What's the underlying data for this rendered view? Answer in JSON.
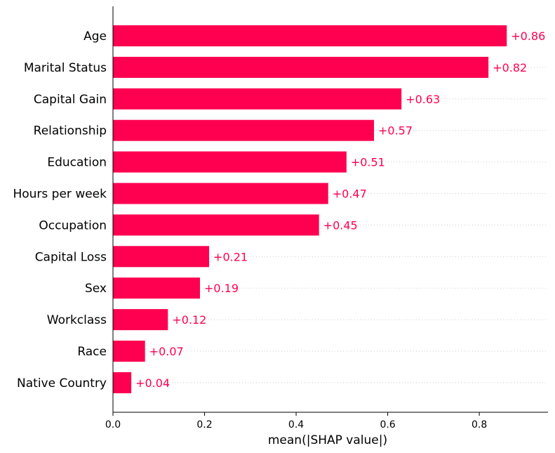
{
  "chart_data": {
    "type": "bar",
    "orientation": "horizontal",
    "categories": [
      "Age",
      "Marital Status",
      "Capital Gain",
      "Relationship",
      "Education",
      "Hours per week",
      "Occupation",
      "Capital Loss",
      "Sex",
      "Workclass",
      "Race",
      "Native Country"
    ],
    "values": [
      0.86,
      0.82,
      0.63,
      0.57,
      0.51,
      0.47,
      0.45,
      0.21,
      0.19,
      0.12,
      0.07,
      0.04
    ],
    "value_labels": [
      "+0.86",
      "+0.82",
      "+0.63",
      "+0.57",
      "+0.51",
      "+0.47",
      "+0.45",
      "+0.21",
      "+0.19",
      "+0.12",
      "+0.07",
      "+0.04"
    ],
    "xlabel": "mean(|SHAP value|)",
    "ylabel": "",
    "xlim": [
      0,
      0.95
    ],
    "xticks": [
      0.0,
      0.2,
      0.4,
      0.6,
      0.8
    ],
    "xtick_labels": [
      "0.0",
      "0.2",
      "0.4",
      "0.6",
      "0.8"
    ],
    "grid": "horizontal dotted guide lines per category",
    "colors": {
      "bar": "#ff0051",
      "value_label": "#ff0051",
      "axis": "#000000",
      "guide": "#cccccc"
    }
  }
}
